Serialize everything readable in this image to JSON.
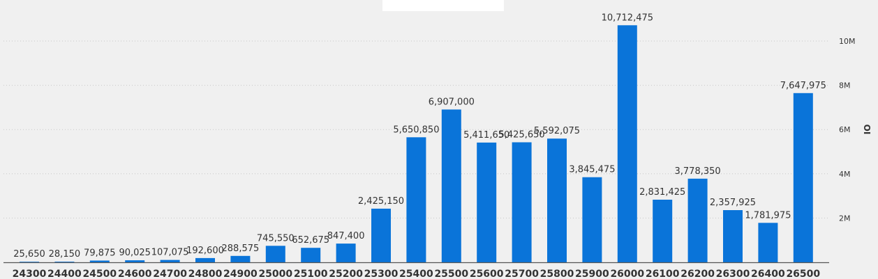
{
  "colors": {
    "bar": "#0a74d9",
    "background": "#f0f0f0",
    "grid": "#c8c8c8",
    "text": "#333333"
  },
  "chart_data": {
    "type": "bar",
    "title": "",
    "xlabel": "",
    "ylabel": "OI",
    "categories": [
      "24300",
      "24400",
      "24500",
      "24600",
      "24700",
      "24800",
      "24900",
      "25000",
      "25100",
      "25200",
      "25300",
      "25400",
      "25500",
      "25600",
      "25700",
      "25800",
      "25900",
      "26000",
      "26100",
      "26200",
      "26300",
      "26400",
      "26500"
    ],
    "series": [
      {
        "values": [
          25650,
          28150,
          79875,
          90025,
          107075,
          192600,
          288575,
          745550,
          652675,
          847400,
          2425150,
          5650850,
          6907000,
          5411650,
          5425650,
          5592075,
          3845475,
          10712475,
          2831425,
          3778350,
          2357925,
          1781975,
          7647975
        ],
        "labels": [
          "25,650",
          "28,150",
          "79,875",
          "90,025",
          "107,075",
          "192,600",
          "288,575",
          "745,550",
          "652,675",
          "847,400",
          "2,425,150",
          "5,650,850",
          "6,907,000",
          "5,411,650",
          "5,425,650",
          "5,592,075",
          "3,845,475",
          "10,712,475",
          "2,831,425",
          "3,778,350",
          "2,357,925",
          "1,781,975",
          "7,647,975"
        ]
      }
    ],
    "ylim": [
      0,
      10000000
    ],
    "yticks": [
      {
        "value": 2000000,
        "label": "2M"
      },
      {
        "value": 4000000,
        "label": "4M"
      },
      {
        "value": 6000000,
        "label": "6M"
      },
      {
        "value": 8000000,
        "label": "8M"
      },
      {
        "value": 10000000,
        "label": "10M"
      }
    ],
    "y_axis_side": "right",
    "grid": true
  }
}
